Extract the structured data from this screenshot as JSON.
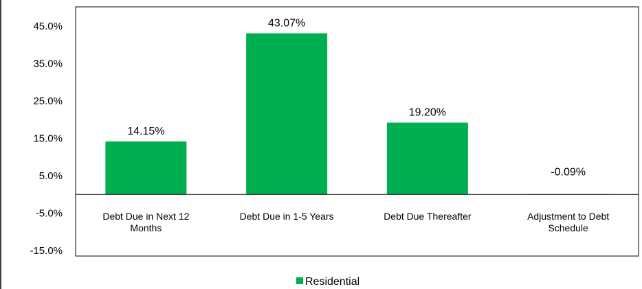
{
  "chart_data": {
    "type": "bar",
    "categories": [
      [
        "Debt Due in Next 12",
        "Months"
      ],
      [
        "Debt Due in 1-5 Years"
      ],
      [
        "Debt Due Thereafter"
      ],
      [
        "Adjustment to Debt",
        "Schedule"
      ]
    ],
    "series": [
      {
        "name": "Residential",
        "color": "#00B050",
        "values": [
          14.15,
          43.07,
          19.2,
          -0.09
        ],
        "labels": [
          "14.15%",
          "43.07%",
          "19.20%",
          "-0.09%"
        ]
      }
    ],
    "y_ticks": [
      "45.0%",
      "35.0%",
      "25.0%",
      "15.0%",
      "5.0%",
      "-5.0%",
      "-15.0%"
    ],
    "y_tick_values": [
      45,
      35,
      25,
      15,
      5,
      -5,
      -15
    ],
    "ylim": [
      -15,
      50
    ],
    "grid": false,
    "legend_position": "bottom"
  }
}
